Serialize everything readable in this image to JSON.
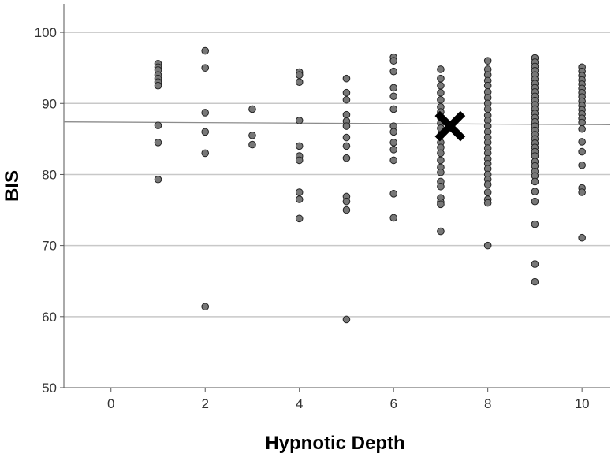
{
  "chart_data": {
    "type": "scatter",
    "title": "",
    "xlabel": "Hypnotic Depth",
    "ylabel": "BIS",
    "xlim": [
      -1,
      10.6
    ],
    "ylim": [
      50,
      104
    ],
    "x_ticks": [
      0,
      2,
      4,
      6,
      8,
      10
    ],
    "y_ticks": [
      50,
      60,
      70,
      80,
      90,
      100
    ],
    "grid": "horizontal",
    "legend": "none",
    "colors": {
      "point_fill": "#777777",
      "point_stroke": "#222222",
      "grid": "#c8c8c8",
      "fit_line": "#8c8c8c",
      "axis": "#555555",
      "marker": "#000000"
    },
    "fit_line": {
      "x": [
        -1,
        10.6
      ],
      "y": [
        87.4,
        87.0
      ]
    },
    "highlight": {
      "x": 7.2,
      "y": 86.8,
      "shape": "cross"
    },
    "points": [
      [
        1,
        95.6
      ],
      [
        1,
        95.1
      ],
      [
        1,
        94.7
      ],
      [
        1,
        94.0
      ],
      [
        1,
        93.5
      ],
      [
        1,
        93.0
      ],
      [
        1,
        92.5
      ],
      [
        1,
        86.9
      ],
      [
        1,
        84.5
      ],
      [
        1,
        79.3
      ],
      [
        2,
        97.4
      ],
      [
        2,
        95.0
      ],
      [
        2,
        88.7
      ],
      [
        2,
        86.0
      ],
      [
        2,
        83.0
      ],
      [
        2,
        61.4
      ],
      [
        3,
        89.2
      ],
      [
        3,
        85.5
      ],
      [
        3,
        84.2
      ],
      [
        4,
        94.4
      ],
      [
        4,
        94.0
      ],
      [
        4,
        93.0
      ],
      [
        4,
        87.6
      ],
      [
        4,
        84.0
      ],
      [
        4,
        82.6
      ],
      [
        4,
        82.0
      ],
      [
        4,
        77.5
      ],
      [
        4,
        76.5
      ],
      [
        4,
        73.8
      ],
      [
        5,
        93.5
      ],
      [
        5,
        91.5
      ],
      [
        5,
        90.5
      ],
      [
        5,
        88.4
      ],
      [
        5,
        87.5
      ],
      [
        5,
        86.8
      ],
      [
        5,
        85.2
      ],
      [
        5,
        84.0
      ],
      [
        5,
        82.3
      ],
      [
        5,
        76.9
      ],
      [
        5,
        76.2
      ],
      [
        5,
        75.0
      ],
      [
        5,
        59.6
      ],
      [
        6,
        96.5
      ],
      [
        6,
        96.0
      ],
      [
        6,
        94.5
      ],
      [
        6,
        92.2
      ],
      [
        6,
        91.0
      ],
      [
        6,
        89.2
      ],
      [
        6,
        86.8
      ],
      [
        6,
        86.0
      ],
      [
        6,
        84.5
      ],
      [
        6,
        83.5
      ],
      [
        6,
        82.0
      ],
      [
        6,
        77.3
      ],
      [
        6,
        73.9
      ],
      [
        7,
        94.8
      ],
      [
        7,
        93.5
      ],
      [
        7,
        92.5
      ],
      [
        7,
        91.5
      ],
      [
        7,
        90.5
      ],
      [
        7,
        89.5
      ],
      [
        7,
        88.8
      ],
      [
        7,
        88.0
      ],
      [
        7,
        87.2
      ],
      [
        7,
        86.5
      ],
      [
        7,
        85.5
      ],
      [
        7,
        84.5
      ],
      [
        7,
        83.8
      ],
      [
        7,
        83.0
      ],
      [
        7,
        82.0
      ],
      [
        7,
        81.0
      ],
      [
        7,
        80.3
      ],
      [
        7,
        79.0
      ],
      [
        7,
        78.3
      ],
      [
        7,
        76.7
      ],
      [
        7,
        76.1
      ],
      [
        7,
        75.8
      ],
      [
        7,
        72.0
      ],
      [
        8,
        96.0
      ],
      [
        8,
        94.8
      ],
      [
        8,
        94.0
      ],
      [
        8,
        93.2
      ],
      [
        8,
        92.5
      ],
      [
        8,
        91.6
      ],
      [
        8,
        90.8
      ],
      [
        8,
        90.0
      ],
      [
        8,
        89.2
      ],
      [
        8,
        88.3
      ],
      [
        8,
        87.6
      ],
      [
        8,
        86.8
      ],
      [
        8,
        86.0
      ],
      [
        8,
        85.2
      ],
      [
        8,
        84.5
      ],
      [
        8,
        83.7
      ],
      [
        8,
        83.0
      ],
      [
        8,
        82.2
      ],
      [
        8,
        81.5
      ],
      [
        8,
        80.8
      ],
      [
        8,
        80.0
      ],
      [
        8,
        79.3
      ],
      [
        8,
        78.6
      ],
      [
        8,
        77.5
      ],
      [
        8,
        76.5
      ],
      [
        8,
        76.0
      ],
      [
        8,
        70.0
      ],
      [
        9,
        96.4
      ],
      [
        9,
        95.8
      ],
      [
        9,
        95.2
      ],
      [
        9,
        94.6
      ],
      [
        9,
        94.0
      ],
      [
        9,
        93.4
      ],
      [
        9,
        92.8
      ],
      [
        9,
        92.2
      ],
      [
        9,
        91.6
      ],
      [
        9,
        91.0
      ],
      [
        9,
        90.4
      ],
      [
        9,
        89.8
      ],
      [
        9,
        89.2
      ],
      [
        9,
        88.6
      ],
      [
        9,
        88.0
      ],
      [
        9,
        87.4
      ],
      [
        9,
        86.8
      ],
      [
        9,
        86.2
      ],
      [
        9,
        85.6
      ],
      [
        9,
        85.0
      ],
      [
        9,
        84.4
      ],
      [
        9,
        83.8
      ],
      [
        9,
        83.2
      ],
      [
        9,
        82.6
      ],
      [
        9,
        81.8
      ],
      [
        9,
        81.2
      ],
      [
        9,
        80.4
      ],
      [
        9,
        79.8
      ],
      [
        9,
        79.0
      ],
      [
        9,
        77.6
      ],
      [
        9,
        76.2
      ],
      [
        9,
        73.0
      ],
      [
        9,
        67.4
      ],
      [
        9,
        64.9
      ],
      [
        10,
        95.1
      ],
      [
        10,
        94.5
      ],
      [
        10,
        93.9
      ],
      [
        10,
        93.3
      ],
      [
        10,
        92.7
      ],
      [
        10,
        92.1
      ],
      [
        10,
        91.5
      ],
      [
        10,
        90.9
      ],
      [
        10,
        90.3
      ],
      [
        10,
        89.7
      ],
      [
        10,
        89.1
      ],
      [
        10,
        88.5
      ],
      [
        10,
        87.9
      ],
      [
        10,
        87.3
      ],
      [
        10,
        86.4
      ],
      [
        10,
        84.6
      ],
      [
        10,
        83.2
      ],
      [
        10,
        81.3
      ],
      [
        10,
        78.1
      ],
      [
        10,
        77.5
      ],
      [
        10,
        71.1
      ]
    ]
  }
}
